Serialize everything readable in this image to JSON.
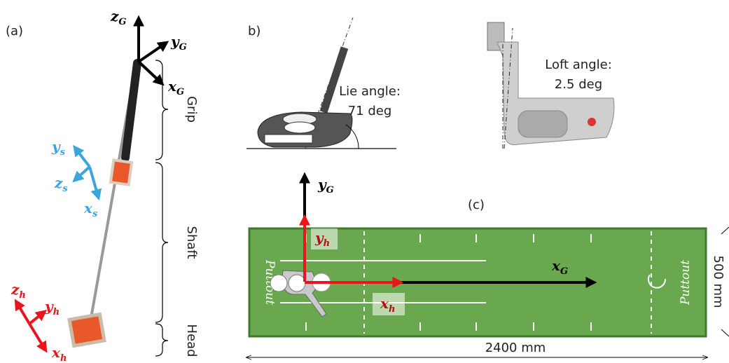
{
  "panels": {
    "a": "(a)",
    "b": "b)",
    "c": "(c)"
  },
  "a_frames": [
    {
      "base": "z",
      "sub": "G"
    },
    {
      "base": "y",
      "sub": "G"
    },
    {
      "base": "x",
      "sub": "G"
    },
    {
      "base": "y",
      "sub": "s"
    },
    {
      "base": "z",
      "sub": "s"
    },
    {
      "base": "x",
      "sub": "s"
    },
    {
      "base": "z",
      "sub": "h"
    },
    {
      "base": "y",
      "sub": "h"
    },
    {
      "base": "x",
      "sub": "h"
    }
  ],
  "braces": [
    "Grip",
    "Shaft",
    "Head"
  ],
  "lie": [
    "Lie angle:",
    "71 deg"
  ],
  "loft": [
    "Loft angle:",
    "2.5 deg"
  ],
  "c_frames": [
    {
      "base": "y",
      "sub": "G"
    },
    {
      "base": "y",
      "sub": "h"
    },
    {
      "base": "x",
      "sub": "h"
    },
    {
      "base": "x",
      "sub": "G"
    }
  ],
  "mat": {
    "brand": "Puttout",
    "length": "2400 mm",
    "width": "500 mm"
  }
}
